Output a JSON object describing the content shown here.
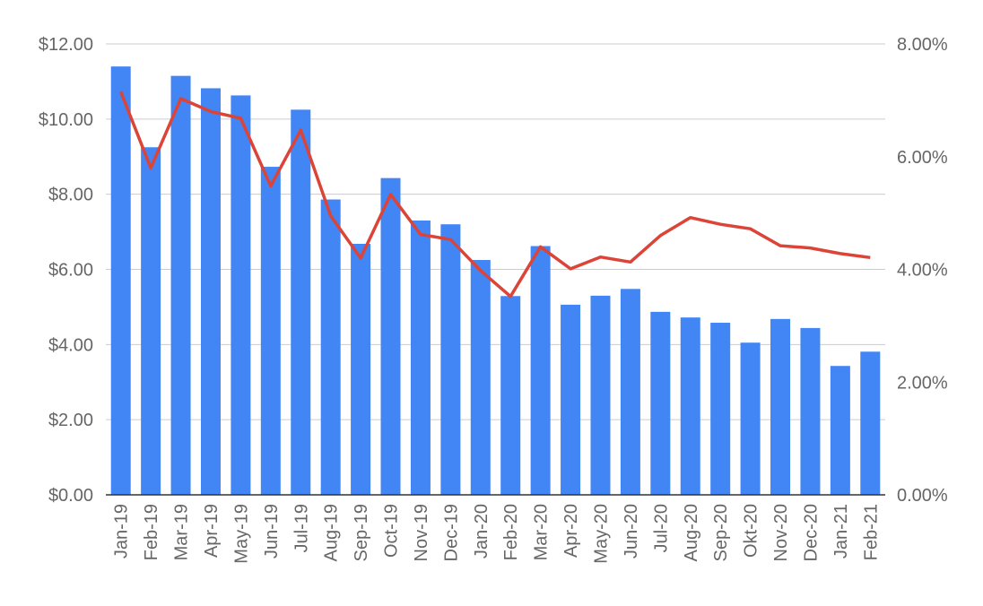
{
  "chart_data": {
    "type": "bar",
    "categories": [
      "Jan-19",
      "Feb-19",
      "Mar-19",
      "Apr-19",
      "May-19",
      "Jun-19",
      "Jul-19",
      "Aug-19",
      "Sep-19",
      "Oct-19",
      "Nov-19",
      "Dec-19",
      "Jan-20",
      "Feb-20",
      "Mar-20",
      "Apr-20",
      "May-20",
      "Jun-20",
      "Jul-20",
      "Aug-20",
      "Sep-20",
      "Okt-20",
      "Nov-20",
      "Dec-20",
      "Jan-21",
      "Feb-21"
    ],
    "series": [
      {
        "type": "bar",
        "axis": "left",
        "color": "#4285f4",
        "values": [
          11.4,
          9.25,
          11.15,
          10.82,
          10.63,
          8.73,
          10.25,
          7.86,
          6.68,
          8.43,
          7.3,
          7.2,
          6.25,
          5.29,
          6.62,
          5.06,
          5.3,
          5.48,
          4.87,
          4.72,
          4.58,
          4.05,
          4.68,
          4.44,
          3.43,
          3.81
        ]
      },
      {
        "type": "line",
        "axis": "right",
        "color": "#db4437",
        "values": [
          7.15,
          5.8,
          7.03,
          6.8,
          6.68,
          5.48,
          6.47,
          4.95,
          4.2,
          5.33,
          4.62,
          4.53,
          3.98,
          3.52,
          4.4,
          4.01,
          4.22,
          4.13,
          4.6,
          4.92,
          4.8,
          4.72,
          4.42,
          4.38,
          4.28,
          4.21
        ]
      }
    ],
    "y_left": {
      "ylim": [
        0,
        12
      ],
      "ticks": [
        "$0.00",
        "$2.00",
        "$4.00",
        "$6.00",
        "$8.00",
        "$10.00",
        "$12.00"
      ]
    },
    "y_right": {
      "ylim": [
        0,
        8
      ],
      "ticks": [
        "0.00%",
        "2.00%",
        "4.00%",
        "6.00%",
        "8.00%"
      ]
    },
    "grid": true,
    "legend": "none"
  }
}
